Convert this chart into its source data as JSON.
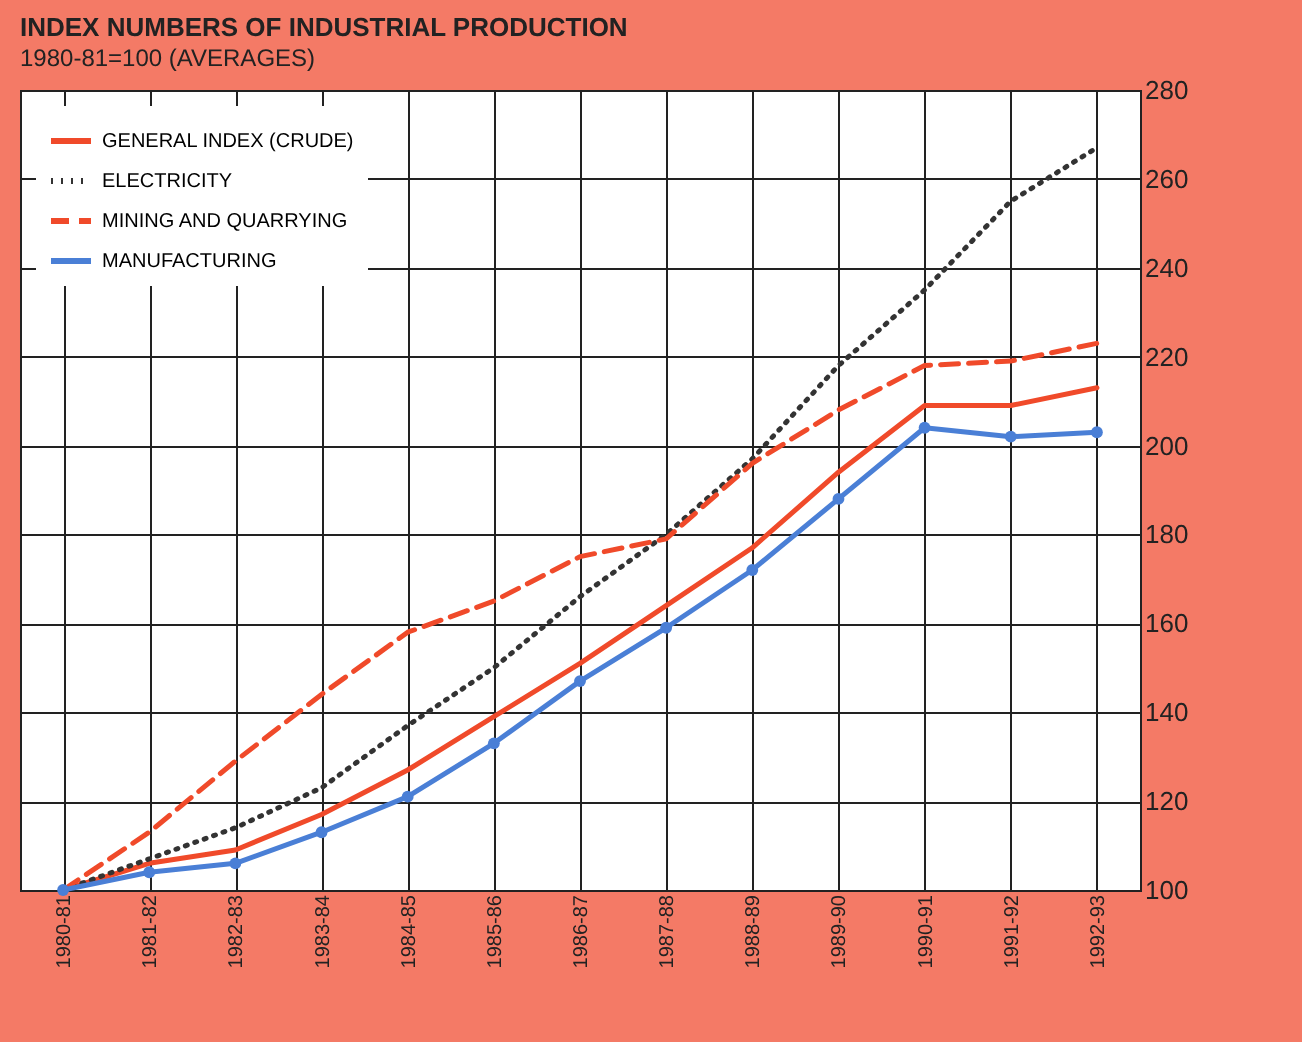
{
  "chart_data": {
    "type": "line",
    "title": "INDEX NUMBERS OF INDUSTRIAL PRODUCTION",
    "subtitle": "1980-81=100 (AVERAGES)",
    "categories": [
      "1980-81",
      "1981-82",
      "1982-83",
      "1983-84",
      "1984-85",
      "1985-86",
      "1986-87",
      "1987-88",
      "1988-89",
      "1989-90",
      "1990-91",
      "1991-92",
      "1992-93"
    ],
    "series": [
      {
        "name": "GENERAL INDEX (CRUDE)",
        "color": "#f04a2a",
        "line_style": "solid",
        "marker": "none",
        "values": [
          100,
          106,
          109,
          117,
          127,
          139,
          151,
          164,
          177,
          194,
          209,
          209,
          213
        ]
      },
      {
        "name": "ELECTRICITY",
        "color": "#333333",
        "line_style": "dotted",
        "marker": "none",
        "values": [
          100,
          107,
          114,
          123,
          137,
          150,
          166,
          180,
          197,
          218,
          235,
          255,
          267
        ]
      },
      {
        "name": "MINING AND QUARRYING",
        "color": "#f04a2a",
        "line_style": "dashed",
        "marker": "none",
        "values": [
          100,
          113,
          129,
          144,
          158,
          165,
          175,
          179,
          196,
          208,
          218,
          219,
          223
        ]
      },
      {
        "name": "MANUFACTURING",
        "color": "#4a7fd6",
        "line_style": "solid",
        "marker": "circle",
        "values": [
          100,
          104,
          106,
          113,
          121,
          133,
          147,
          159,
          172,
          188,
          204,
          202,
          203
        ]
      }
    ],
    "ylim": [
      100,
      280
    ],
    "yticks": [
      100,
      120,
      140,
      160,
      180,
      200,
      220,
      240,
      260,
      280
    ],
    "grid": true,
    "legend": "top left"
  }
}
